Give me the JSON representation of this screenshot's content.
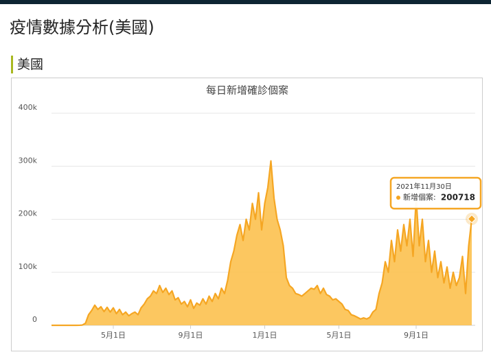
{
  "header": {
    "title": "疫情數據分析(美國)"
  },
  "section": {
    "title": "美國"
  },
  "chart_data": {
    "type": "area",
    "title": "每日新增確診個案",
    "categories": [
      null,
      null,
      null,
      null,
      null,
      null,
      null,
      null,
      null,
      null,
      null,
      null,
      null,
      null,
      null,
      null,
      null,
      null,
      null,
      null,
      "5月1日",
      null,
      null,
      null,
      null,
      null,
      null,
      null,
      null,
      null,
      null,
      null,
      null,
      null,
      null,
      null,
      null,
      null,
      null,
      null,
      null,
      null,
      null,
      null,
      null,
      "9月1日",
      null,
      null,
      null,
      null,
      null,
      null,
      null,
      null,
      null,
      null,
      null,
      null,
      null,
      null,
      null,
      null,
      null,
      null,
      null,
      null,
      null,
      null,
      null,
      "1月1日",
      null,
      null,
      null,
      null,
      null,
      null,
      null,
      null,
      null,
      null,
      null,
      null,
      null,
      null,
      null,
      null,
      null,
      null,
      null,
      null,
      null,
      null,
      null,
      "5月1日",
      null,
      null,
      null,
      null,
      null,
      null,
      null,
      null,
      null,
      null,
      null,
      null,
      null,
      null,
      null,
      null,
      null,
      null,
      null,
      null,
      null,
      null,
      null,
      null,
      "9月1日",
      null,
      null,
      null,
      null,
      null,
      null,
      null,
      null,
      null,
      null,
      null,
      null,
      null,
      null,
      null,
      null,
      null,
      null
    ],
    "series": [
      {
        "name": "新增個案",
        "color": "#f5a623",
        "values": [
          0,
          0,
          0,
          0,
          0,
          0,
          0,
          0,
          0,
          100,
          500,
          4000,
          20000,
          28000,
          38000,
          30000,
          35000,
          26000,
          34000,
          25000,
          33000,
          22000,
          30000,
          20000,
          25000,
          18000,
          22000,
          25000,
          20000,
          33000,
          40000,
          50000,
          55000,
          65000,
          60000,
          75000,
          62000,
          70000,
          58000,
          65000,
          48000,
          52000,
          40000,
          45000,
          35000,
          48000,
          32000,
          42000,
          38000,
          50000,
          40000,
          55000,
          45000,
          60000,
          50000,
          70000,
          60000,
          85000,
          120000,
          140000,
          170000,
          190000,
          160000,
          200000,
          180000,
          230000,
          200000,
          250000,
          180000,
          230000,
          260000,
          310000,
          240000,
          200000,
          180000,
          150000,
          90000,
          75000,
          70000,
          60000,
          58000,
          55000,
          60000,
          65000,
          70000,
          68000,
          75000,
          60000,
          70000,
          58000,
          55000,
          48000,
          50000,
          45000,
          40000,
          30000,
          28000,
          20000,
          18000,
          15000,
          12000,
          14000,
          12000,
          15000,
          25000,
          30000,
          60000,
          80000,
          120000,
          100000,
          160000,
          120000,
          180000,
          140000,
          190000,
          150000,
          200000,
          130000,
          240000,
          150000,
          200000,
          120000,
          160000,
          100000,
          140000,
          90000,
          120000,
          80000,
          110000,
          70000,
          100000,
          75000,
          90000,
          130000,
          60000,
          150000,
          200718
        ]
      }
    ],
    "ylim": [
      0,
      400000
    ],
    "yticks": [
      0,
      {
        "value": 100000,
        "label": "100k"
      },
      {
        "value": 200000,
        "label": "200k"
      },
      {
        "value": 300000,
        "label": "300k"
      },
      {
        "value": 400000,
        "label": "400k"
      }
    ],
    "grid": true,
    "tooltip": {
      "date": "2021年11月30日",
      "label": "新增個案:"
    }
  }
}
